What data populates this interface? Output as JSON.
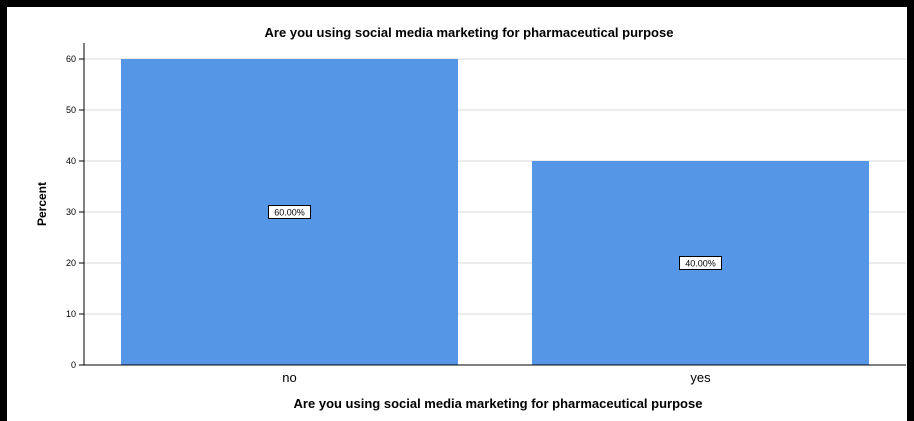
{
  "chart_data": {
    "type": "bar",
    "title": "Are you using social media marketing for pharmaceutical purpose",
    "xlabel": "Are you using social media marketing for pharmaceutical purpose",
    "ylabel": "Percent",
    "categories": [
      "no",
      "yes"
    ],
    "values": [
      60,
      40
    ],
    "data_labels": [
      "60.00%",
      "40.00%"
    ],
    "yticks": [
      0,
      10,
      20,
      30,
      40,
      50,
      60
    ],
    "ylim": [
      0,
      63
    ],
    "grid": true,
    "bar_color": "#5596e6"
  }
}
